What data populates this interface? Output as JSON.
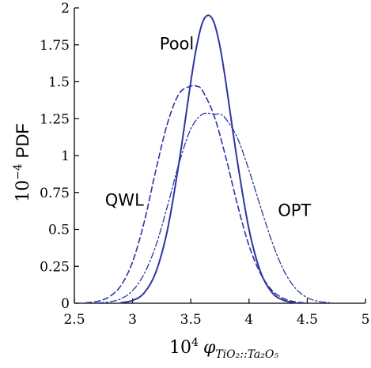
{
  "chart_data": {
    "type": "line",
    "xlim": [
      2.5,
      5
    ],
    "ylim": [
      0,
      2
    ],
    "x_ticks": [
      "2.5",
      "3",
      "3.5",
      "4",
      "4.5",
      "5"
    ],
    "y_ticks": [
      "0",
      "0.25",
      "0.5",
      "0.75",
      "1",
      "1.25",
      "1.5",
      "1.75",
      "2"
    ],
    "xlabel": {
      "prefix": "10",
      "exp": "4",
      "symbol": "φ",
      "subscript": "TiO₂::Ta₂O₅"
    },
    "ylabel": {
      "prefix": "10",
      "exp": "−4",
      "text": "PDF"
    },
    "grid": false,
    "color": "#2e35a0",
    "series": [
      {
        "name": "Pool",
        "style": "solid",
        "x": [
          2.9,
          3.0,
          3.1,
          3.2,
          3.3,
          3.4,
          3.5,
          3.55,
          3.6,
          3.65,
          3.7,
          3.75,
          3.8,
          3.9,
          4.0,
          4.1,
          4.2,
          4.3,
          4.4
        ],
        "y": [
          0.004,
          0.019,
          0.07,
          0.21,
          0.5,
          0.96,
          1.5,
          1.74,
          1.9,
          1.95,
          1.9,
          1.74,
          1.5,
          0.96,
          0.5,
          0.21,
          0.07,
          0.019,
          0.004
        ]
      },
      {
        "name": "QWL",
        "style": "dashed",
        "x": [
          2.6,
          2.7,
          2.8,
          2.9,
          3.0,
          3.1,
          3.2,
          3.3,
          3.4,
          3.5,
          3.55,
          3.6,
          3.7,
          3.8,
          3.9,
          4.0,
          4.1,
          4.2,
          4.3,
          4.4,
          4.5
        ],
        "y": [
          0.003,
          0.013,
          0.044,
          0.12,
          0.28,
          0.55,
          0.9,
          1.22,
          1.42,
          1.47,
          1.47,
          1.44,
          1.27,
          0.99,
          0.67,
          0.39,
          0.2,
          0.085,
          0.031,
          0.009,
          0.002
        ]
      },
      {
        "name": "OPT",
        "style": "dashdot",
        "x": [
          2.7,
          2.8,
          2.9,
          3.0,
          3.1,
          3.2,
          3.3,
          3.4,
          3.5,
          3.6,
          3.7,
          3.75,
          3.8,
          3.9,
          4.0,
          4.1,
          4.2,
          4.3,
          4.4,
          4.5,
          4.6,
          4.7
        ],
        "y": [
          0.002,
          0.009,
          0.03,
          0.085,
          0.2,
          0.39,
          0.66,
          0.95,
          1.18,
          1.28,
          1.28,
          1.28,
          1.25,
          1.12,
          0.9,
          0.65,
          0.41,
          0.22,
          0.1,
          0.038,
          0.012,
          0.003
        ]
      }
    ],
    "annotations": [
      {
        "text": "Pool",
        "x": 3.38,
        "y": 1.72
      },
      {
        "text": "QWL",
        "x": 2.93,
        "y": 0.66
      },
      {
        "text": "OPT",
        "x": 4.39,
        "y": 0.59
      }
    ]
  }
}
